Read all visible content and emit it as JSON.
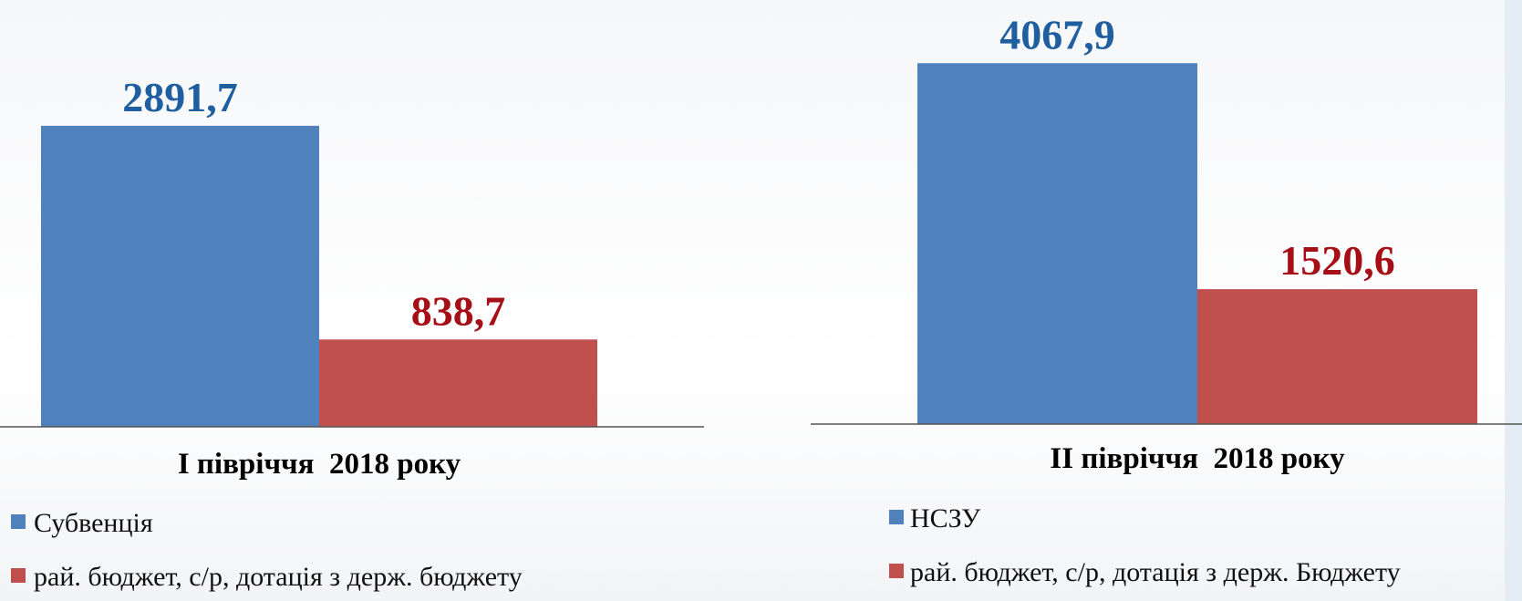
{
  "chart_data": [
    {
      "type": "bar",
      "categories": [
        "I півріччя  2018 року"
      ],
      "series": [
        {
          "name": "Субвенція",
          "color": "#4f81bd",
          "values": [
            2891.7
          ],
          "value_labels": [
            "2891,7"
          ]
        },
        {
          "name": "рай. бюджет, с/р, дотація з держ. бюджету",
          "color": "#c0504d",
          "values": [
            838.7
          ],
          "value_labels": [
            "838,7"
          ]
        }
      ],
      "ylim": [
        0,
        4100
      ]
    },
    {
      "type": "bar",
      "categories": [
        "II півріччя  2018 року"
      ],
      "series": [
        {
          "name": "НСЗУ",
          "color": "#4f81bd",
          "values": [
            4067.9
          ],
          "value_labels": [
            "4067,9"
          ]
        },
        {
          "name": "рай. бюджет, с/р, дотація з держ. Бюджету",
          "color": "#c0504d",
          "values": [
            1520.6
          ],
          "value_labels": [
            "1520,6"
          ]
        }
      ],
      "ylim": [
        0,
        4780
      ]
    }
  ]
}
